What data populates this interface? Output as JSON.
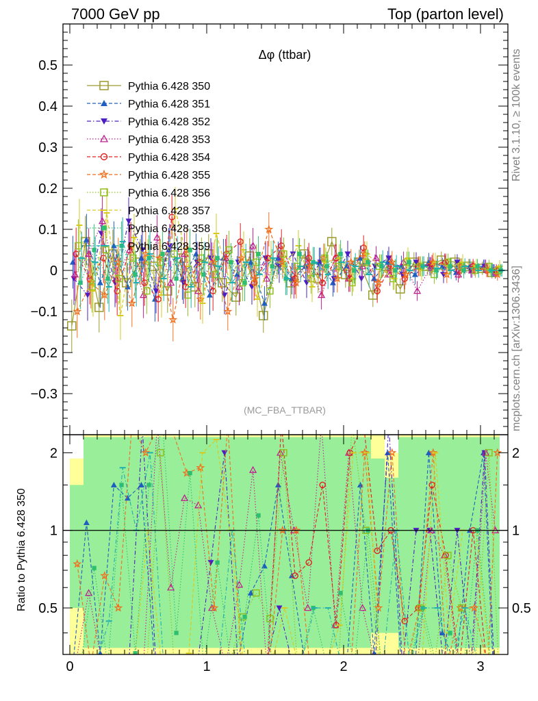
{
  "header": {
    "left": "7000 GeV pp",
    "right": "Top (parton level)"
  },
  "side_labels": {
    "rivet": "Rivet 3.1.10, ≥ 100k events",
    "mcplots": "mcplots.cern.ch [arXiv:1306.3436]"
  },
  "chart_data": {
    "type": "scatter",
    "title": "Δφ (ttbar)",
    "analysis_label": "(MC_FBA_TTBAR)",
    "xlabel": "",
    "ylabel": "",
    "ratio_ylabel": "Ratio to Pythia 6.428 350",
    "xlim": [
      -0.05,
      3.2
    ],
    "ylim": [
      -0.4,
      0.6
    ],
    "ratio_ylim": [
      0.33,
      2.35
    ],
    "x_ticks": [
      "0",
      "1",
      "2",
      "3"
    ],
    "y_ticks": [
      "−0.3",
      "−0.2",
      "−0.1",
      "0",
      "0.1",
      "0.2",
      "0.3",
      "0.4",
      "0.5"
    ],
    "ratio_ticks": [
      "0.5",
      "1",
      "2"
    ],
    "legend_position": "top-left",
    "series": [
      {
        "name": "Pythia 6.428 350",
        "color": "#9a9a2a",
        "marker": "square-open",
        "dash": "solid",
        "x": [
          0.05,
          0.15,
          0.25,
          0.35,
          0.45,
          0.55,
          0.65,
          0.75,
          0.85,
          0.95,
          1.05,
          1.15,
          1.25,
          1.35,
          1.45,
          1.55,
          1.65,
          1.75,
          1.85,
          1.95,
          2.05,
          2.15,
          2.25,
          2.35,
          2.45,
          2.55,
          2.65,
          2.75,
          2.85,
          2.95,
          3.05,
          3.12
        ],
        "y": [
          -0.135,
          0.07,
          -0.09,
          0.04,
          -0.03,
          0.02,
          0.01,
          -0.05,
          0.03,
          -0.04,
          0.04,
          -0.03,
          -0.065,
          0.035,
          -0.11,
          0.02,
          -0.03,
          0.04,
          -0.02,
          0.07,
          -0.01,
          0.02,
          -0.06,
          0.01,
          -0.045,
          0.02,
          0.01,
          0.025,
          0.02,
          0.01,
          0.005,
          -0.005
        ]
      },
      {
        "name": "Pythia 6.428 351",
        "color": "#1f5fbf",
        "marker": "triangle-up",
        "dash": "dashed",
        "x": [
          0.05,
          0.15,
          0.25,
          0.35,
          0.45,
          0.55,
          0.65,
          0.75,
          0.85,
          0.95,
          1.05,
          1.15,
          1.25,
          1.35,
          1.45,
          1.55,
          1.65,
          1.75,
          1.85,
          1.95,
          2.05,
          2.15,
          2.25,
          2.35,
          2.45,
          2.55,
          2.65,
          2.75,
          2.85,
          2.95,
          3.05,
          3.12
        ],
        "y": [
          0.02,
          0.075,
          -0.03,
          0.06,
          -0.04,
          0.03,
          -0.07,
          0.05,
          -0.02,
          0.04,
          -0.06,
          0.03,
          -0.01,
          0.02,
          -0.08,
          0.03,
          -0.02,
          0.01,
          0.02,
          -0.03,
          0.01,
          0.03,
          -0.02,
          0.02,
          0.01,
          -0.01,
          0.02,
          0.01,
          -0.005,
          0.01,
          0.01,
          0.0
        ]
      },
      {
        "name": "Pythia 6.428 352",
        "color": "#4b1fbf",
        "marker": "triangle-down",
        "dash": "dashdot",
        "x": [
          0.05,
          0.15,
          0.25,
          0.35,
          0.45,
          0.55,
          0.65,
          0.75,
          0.85,
          0.95,
          1.05,
          1.15,
          1.25,
          1.35,
          1.45,
          1.55,
          1.65,
          1.75,
          1.85,
          1.95,
          2.05,
          2.15,
          2.25,
          2.35,
          2.45,
          2.55,
          2.65,
          2.75,
          2.85,
          2.95,
          3.05,
          3.12
        ],
        "y": [
          -0.02,
          -0.06,
          0.09,
          -0.03,
          0.12,
          0.05,
          -0.05,
          0.06,
          -0.03,
          0.02,
          0.03,
          -0.06,
          0.02,
          -0.04,
          0.03,
          0.01,
          0.04,
          -0.03,
          0.02,
          -0.02,
          0.04,
          -0.02,
          0.01,
          0.03,
          -0.01,
          0.02,
          0.01,
          -0.01,
          0.02,
          0.0,
          0.01,
          0.0
        ]
      },
      {
        "name": "Pythia 6.428 353",
        "color": "#bf1f8f",
        "marker": "triangle-open",
        "dash": "dotted",
        "x": [
          0.05,
          0.15,
          0.25,
          0.35,
          0.45,
          0.55,
          0.65,
          0.75,
          0.85,
          0.95,
          1.05,
          1.15,
          1.25,
          1.35,
          1.45,
          1.55,
          1.65,
          1.75,
          1.85,
          1.95,
          2.05,
          2.15,
          2.25,
          2.35,
          2.45,
          2.55,
          2.65,
          2.75,
          2.85,
          2.95,
          3.05,
          3.12
        ],
        "y": [
          -0.01,
          0.04,
          0.12,
          -0.02,
          0.05,
          -0.06,
          0.08,
          -0.03,
          0.04,
          -0.05,
          0.02,
          0.03,
          -0.04,
          0.06,
          -0.02,
          0.04,
          -0.03,
          0.02,
          -0.06,
          0.03,
          -0.02,
          0.01,
          0.03,
          -0.01,
          0.02,
          -0.05,
          0.01,
          0.02,
          -0.01,
          0.0,
          0.01,
          -0.005
        ]
      },
      {
        "name": "Pythia 6.428 354",
        "color": "#e02020",
        "marker": "circle-open",
        "dash": "dashed",
        "x": [
          0.05,
          0.15,
          0.25,
          0.35,
          0.45,
          0.55,
          0.65,
          0.75,
          0.85,
          0.95,
          1.05,
          1.15,
          1.25,
          1.35,
          1.45,
          1.55,
          1.65,
          1.75,
          1.85,
          1.95,
          2.05,
          2.15,
          2.25,
          2.35,
          2.45,
          2.55,
          2.65,
          2.75,
          2.85,
          2.95,
          3.05,
          3.12
        ],
        "y": [
          0.04,
          -0.02,
          0.03,
          -0.05,
          0.06,
          -0.03,
          -0.07,
          0.13,
          -0.04,
          0.02,
          -0.05,
          0.04,
          0.07,
          -0.03,
          0.03,
          0.06,
          -0.02,
          0.03,
          -0.03,
          0.03,
          -0.02,
          0.055,
          -0.05,
          0.01,
          -0.02,
          0.01,
          0.015,
          0.02,
          0.0,
          0.01,
          0.0,
          0.0
        ]
      },
      {
        "name": "Pythia 6.428 355",
        "color": "#ef6f1f",
        "marker": "star-open",
        "dash": "dashed",
        "x": [
          0.05,
          0.15,
          0.25,
          0.35,
          0.45,
          0.55,
          0.65,
          0.75,
          0.85,
          0.95,
          1.05,
          1.15,
          1.25,
          1.35,
          1.45,
          1.55,
          1.65,
          1.75,
          1.85,
          1.95,
          2.05,
          2.15,
          2.25,
          2.35,
          2.45,
          2.55,
          2.65,
          2.75,
          2.85,
          2.95,
          3.05,
          3.12
        ],
        "y": [
          -0.1,
          -0.03,
          -0.06,
          0.02,
          -0.08,
          0.04,
          0.03,
          -0.12,
          0.05,
          -0.07,
          0.02,
          -0.1,
          0.03,
          -0.02,
          0.1,
          0.02,
          -0.03,
          0.01,
          0.03,
          -0.02,
          0.02,
          0.04,
          -0.03,
          0.02,
          -0.01,
          0.01,
          0.02,
          -0.01,
          0.01,
          0.005,
          0.0,
          -0.01
        ]
      },
      {
        "name": "Pythia 6.428 356",
        "color": "#8fbf1f",
        "marker": "square-open",
        "dash": "dotted",
        "x": [
          0.05,
          0.15,
          0.25,
          0.35,
          0.45,
          0.55,
          0.65,
          0.75,
          0.85,
          0.95,
          1.05,
          1.15,
          1.25,
          1.35,
          1.45,
          1.55,
          1.65,
          1.75,
          1.85,
          1.95,
          2.05,
          2.15,
          2.25,
          2.35,
          2.45,
          2.55,
          2.65,
          2.75,
          2.85,
          2.95,
          3.05,
          3.12
        ],
        "y": [
          0.06,
          -0.04,
          0.05,
          -0.02,
          0.03,
          -0.05,
          0.02,
          0.04,
          -0.06,
          0.03,
          -0.01,
          0.05,
          -0.03,
          0.02,
          -0.05,
          0.04,
          0.01,
          -0.02,
          0.03,
          0.01,
          -0.03,
          0.02,
          0.01,
          -0.02,
          0.02,
          0.01,
          -0.01,
          0.02,
          0.01,
          0.0,
          0.01,
          0.0
        ]
      },
      {
        "name": "Pythia 6.428 357",
        "color": "#d7c91f",
        "marker": "dash",
        "dash": "dashed",
        "x": [
          0.05,
          0.15,
          0.25,
          0.35,
          0.45,
          0.55,
          0.65,
          0.75,
          0.85,
          0.95,
          1.05,
          1.15,
          1.25,
          1.35,
          1.45,
          1.55,
          1.65,
          1.75,
          1.85,
          1.95,
          2.05,
          2.15,
          2.25,
          2.35,
          2.45,
          2.55,
          2.65,
          2.75,
          2.85,
          2.95,
          3.05,
          3.12
        ],
        "y": [
          0.11,
          -0.05,
          0.14,
          -0.11,
          0.08,
          0.02,
          -0.06,
          0.15,
          0.01,
          -0.08,
          0.09,
          -0.03,
          0.05,
          -0.07,
          0.03,
          0.01,
          0.06,
          -0.04,
          0.02,
          0.03,
          -0.02,
          0.04,
          0.01,
          -0.02,
          0.03,
          0.0,
          0.02,
          0.01,
          0.02,
          0.01,
          0.0,
          0.01
        ]
      },
      {
        "name": "Pythia 6.428 358",
        "color": "#2fbf6f",
        "marker": "square",
        "dash": "dotted",
        "x": [
          0.05,
          0.15,
          0.25,
          0.35,
          0.45,
          0.55,
          0.65,
          0.75,
          0.85,
          0.95,
          1.05,
          1.15,
          1.25,
          1.35,
          1.45,
          1.55,
          1.65,
          1.75,
          1.85,
          1.95,
          2.05,
          2.15,
          2.25,
          2.35,
          2.45,
          2.55,
          2.65,
          2.75,
          2.85,
          2.95,
          3.05,
          3.12
        ],
        "y": [
          -0.03,
          0.05,
          -0.02,
          0.06,
          -0.01,
          0.03,
          0.04,
          -0.02,
          0.05,
          -0.01,
          0.03,
          0.02,
          -0.03,
          0.04,
          0.01,
          -0.02,
          0.04,
          0.02,
          0.01,
          0.04,
          0.0,
          0.02,
          0.01,
          0.0,
          0.02,
          0.01,
          0.0,
          0.01,
          0.0,
          0.01,
          0.0,
          0.0
        ]
      },
      {
        "name": "Pythia 6.428 359",
        "color": "#1fafaf",
        "marker": "dash",
        "dash": "dashdot",
        "x": [
          0.05,
          0.15,
          0.25,
          0.35,
          0.45,
          0.55,
          0.65,
          0.75,
          0.85,
          0.95,
          1.05,
          1.15,
          1.25,
          1.35,
          1.45,
          1.55,
          1.65,
          1.75,
          1.85,
          1.95,
          2.05,
          2.15,
          2.25,
          2.35,
          2.45,
          2.55,
          2.65,
          2.75,
          2.85,
          2.95,
          3.05,
          3.12
        ],
        "y": [
          0.03,
          0.02,
          -0.04,
          0.07,
          -0.03,
          0.04,
          -0.02,
          0.03,
          -0.04,
          0.02,
          0.01,
          -0.03,
          0.02,
          -0.01,
          0.03,
          -0.02,
          0.01,
          0.02,
          -0.01,
          0.02,
          0.01,
          -0.01,
          0.02,
          0.01,
          0.0,
          0.01,
          0.005,
          0.0,
          0.01,
          0.0,
          0.0,
          0.0
        ]
      }
    ],
    "ratio_band": {
      "colors": {
        "inner": "#99ee99",
        "outer": "#ffff99"
      },
      "x_edges": [
        0.0,
        0.1,
        0.2,
        0.3,
        0.4,
        0.5,
        0.6,
        0.7,
        0.8,
        0.9,
        1.0,
        1.1,
        1.2,
        1.3,
        1.4,
        1.5,
        1.6,
        1.7,
        1.8,
        1.9,
        2.0,
        2.1,
        2.2,
        2.3,
        2.4,
        2.5,
        2.6,
        2.7,
        2.8,
        2.9,
        3.0,
        3.14
      ],
      "inner_hi": [
        1.5,
        2.3,
        2.3,
        2.3,
        2.3,
        2.3,
        2.3,
        2.3,
        2.3,
        2.3,
        2.3,
        2.3,
        2.3,
        2.3,
        2.3,
        2.3,
        2.3,
        2.3,
        2.3,
        2.3,
        2.3,
        2.3,
        1.9,
        1.6,
        2.3,
        2.3,
        2.3,
        2.3,
        2.3,
        2.3,
        2.3,
        2.3
      ],
      "inner_lo": [
        0.5,
        0.35,
        0.35,
        0.35,
        0.35,
        0.35,
        0.35,
        0.35,
        0.35,
        0.35,
        0.35,
        0.35,
        0.35,
        0.35,
        0.35,
        0.35,
        0.35,
        0.35,
        0.35,
        0.35,
        0.35,
        0.35,
        0.4,
        0.4,
        0.35,
        0.35,
        0.35,
        0.35,
        0.35,
        0.35,
        0.35,
        0.35
      ],
      "outer_hi": [
        1.9,
        2.35,
        2.35,
        2.35,
        2.35,
        2.35,
        2.35,
        2.35,
        2.35,
        2.35,
        2.35,
        2.35,
        2.35,
        2.35,
        2.35,
        2.35,
        2.35,
        2.35,
        2.35,
        2.35,
        2.35,
        2.35,
        2.35,
        2.0,
        2.35,
        2.35,
        2.35,
        2.35,
        2.35,
        2.35,
        2.35,
        2.35
      ],
      "outer_lo": [
        0.33,
        0.33,
        0.33,
        0.33,
        0.33,
        0.33,
        0.33,
        0.33,
        0.33,
        0.33,
        0.33,
        0.33,
        0.33,
        0.33,
        0.33,
        0.33,
        0.33,
        0.33,
        0.33,
        0.33,
        0.33,
        0.33,
        0.33,
        0.33,
        0.33,
        0.33,
        0.33,
        0.33,
        0.33,
        0.33,
        0.33,
        0.33
      ]
    }
  }
}
